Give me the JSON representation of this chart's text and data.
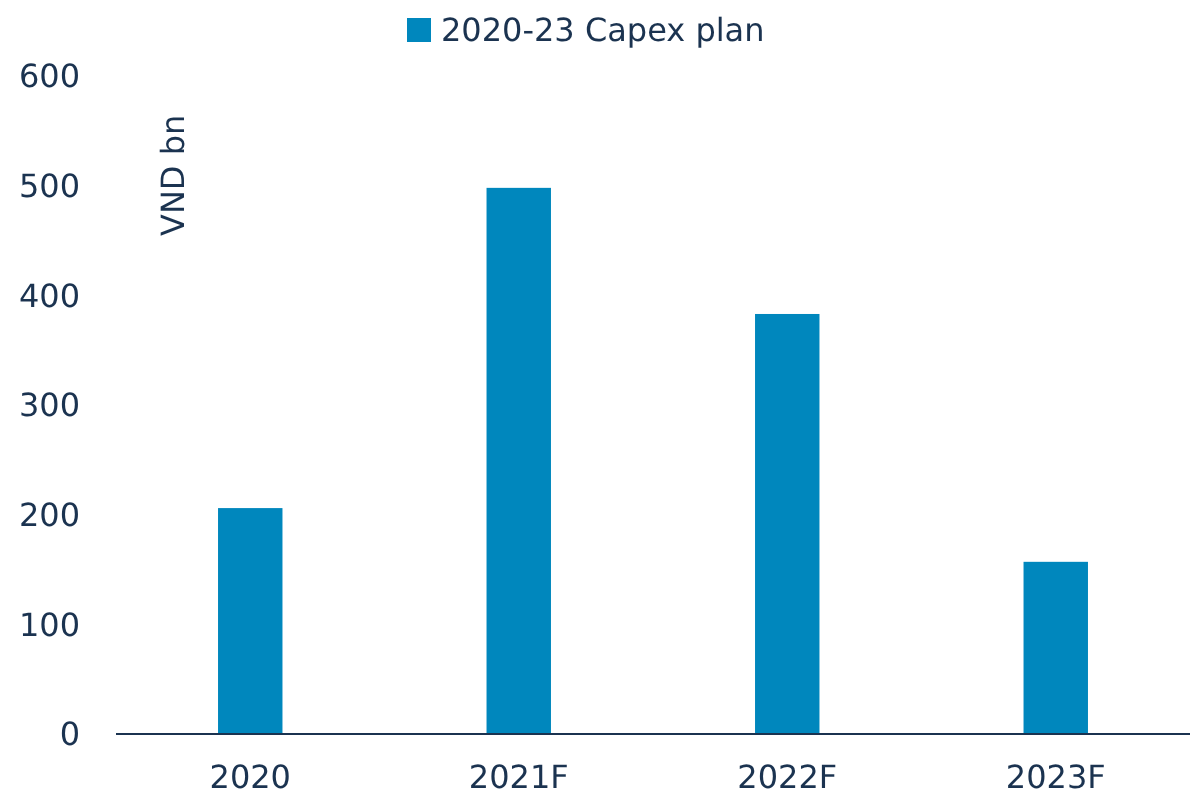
{
  "chart_data": {
    "type": "bar",
    "ylabel": "VND bn",
    "categories": [
      "2020",
      "2021F",
      "2022F",
      "2023F"
    ],
    "series": [
      {
        "name": "2020-23 Capex plan",
        "color": "#0087bd",
        "values": [
          206,
          498,
          383,
          157
        ]
      }
    ],
    "ylim": [
      0,
      600
    ],
    "yticks": [
      0,
      100,
      200,
      300,
      400,
      500,
      600
    ],
    "grid": false,
    "legend": "top"
  }
}
